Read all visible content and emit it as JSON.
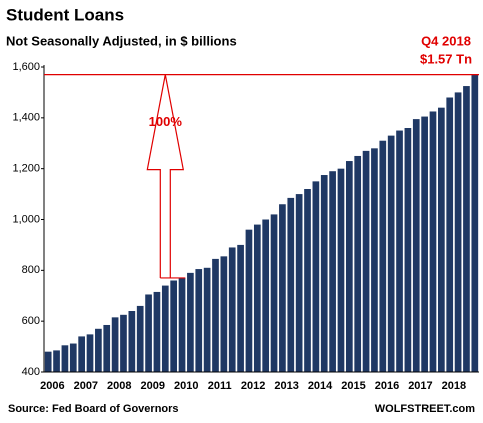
{
  "chart_data": {
    "type": "bar",
    "title": "Student Loans",
    "subtitle": "Not Seasonally Adjusted, in $ billions",
    "source": "Source: Fed Board of Governors",
    "watermark": "WOLFSTREET.com",
    "annotations": [
      "Q4 2018",
      "$1.57 Tn",
      "100%"
    ],
    "color": "#1f3864",
    "annotation_color": "#e00000",
    "grid": false,
    "categories": [
      "2006",
      null,
      null,
      null,
      "2007",
      null,
      null,
      null,
      "2008",
      null,
      null,
      null,
      "2009",
      null,
      null,
      null,
      "2010",
      null,
      null,
      null,
      "2011",
      null,
      null,
      null,
      "2012",
      null,
      null,
      null,
      "2013",
      null,
      null,
      null,
      "2014",
      null,
      null,
      null,
      "2015",
      null,
      null,
      null,
      "2016",
      null,
      null,
      null,
      "2017",
      null,
      null,
      null,
      "2018",
      null,
      null,
      null
    ],
    "values": [
      480,
      485,
      505,
      512,
      540,
      548,
      570,
      585,
      615,
      625,
      640,
      660,
      705,
      715,
      740,
      760,
      770,
      790,
      805,
      810,
      845,
      855,
      890,
      900,
      960,
      980,
      1000,
      1020,
      1060,
      1085,
      1100,
      1120,
      1150,
      1175,
      1190,
      1200,
      1230,
      1250,
      1270,
      1280,
      1310,
      1330,
      1350,
      1360,
      1395,
      1405,
      1425,
      1440,
      1480,
      1500,
      1525,
      1570
    ],
    "ylim": [
      400,
      1600
    ],
    "yticks": [
      400,
      600,
      800,
      {
        "value": 1000,
        "label": "1,000"
      },
      {
        "value": 1200,
        "label": "1,200"
      },
      {
        "value": 1400,
        "label": "1,400"
      },
      {
        "value": 1600,
        "label": "1,600"
      }
    ]
  }
}
